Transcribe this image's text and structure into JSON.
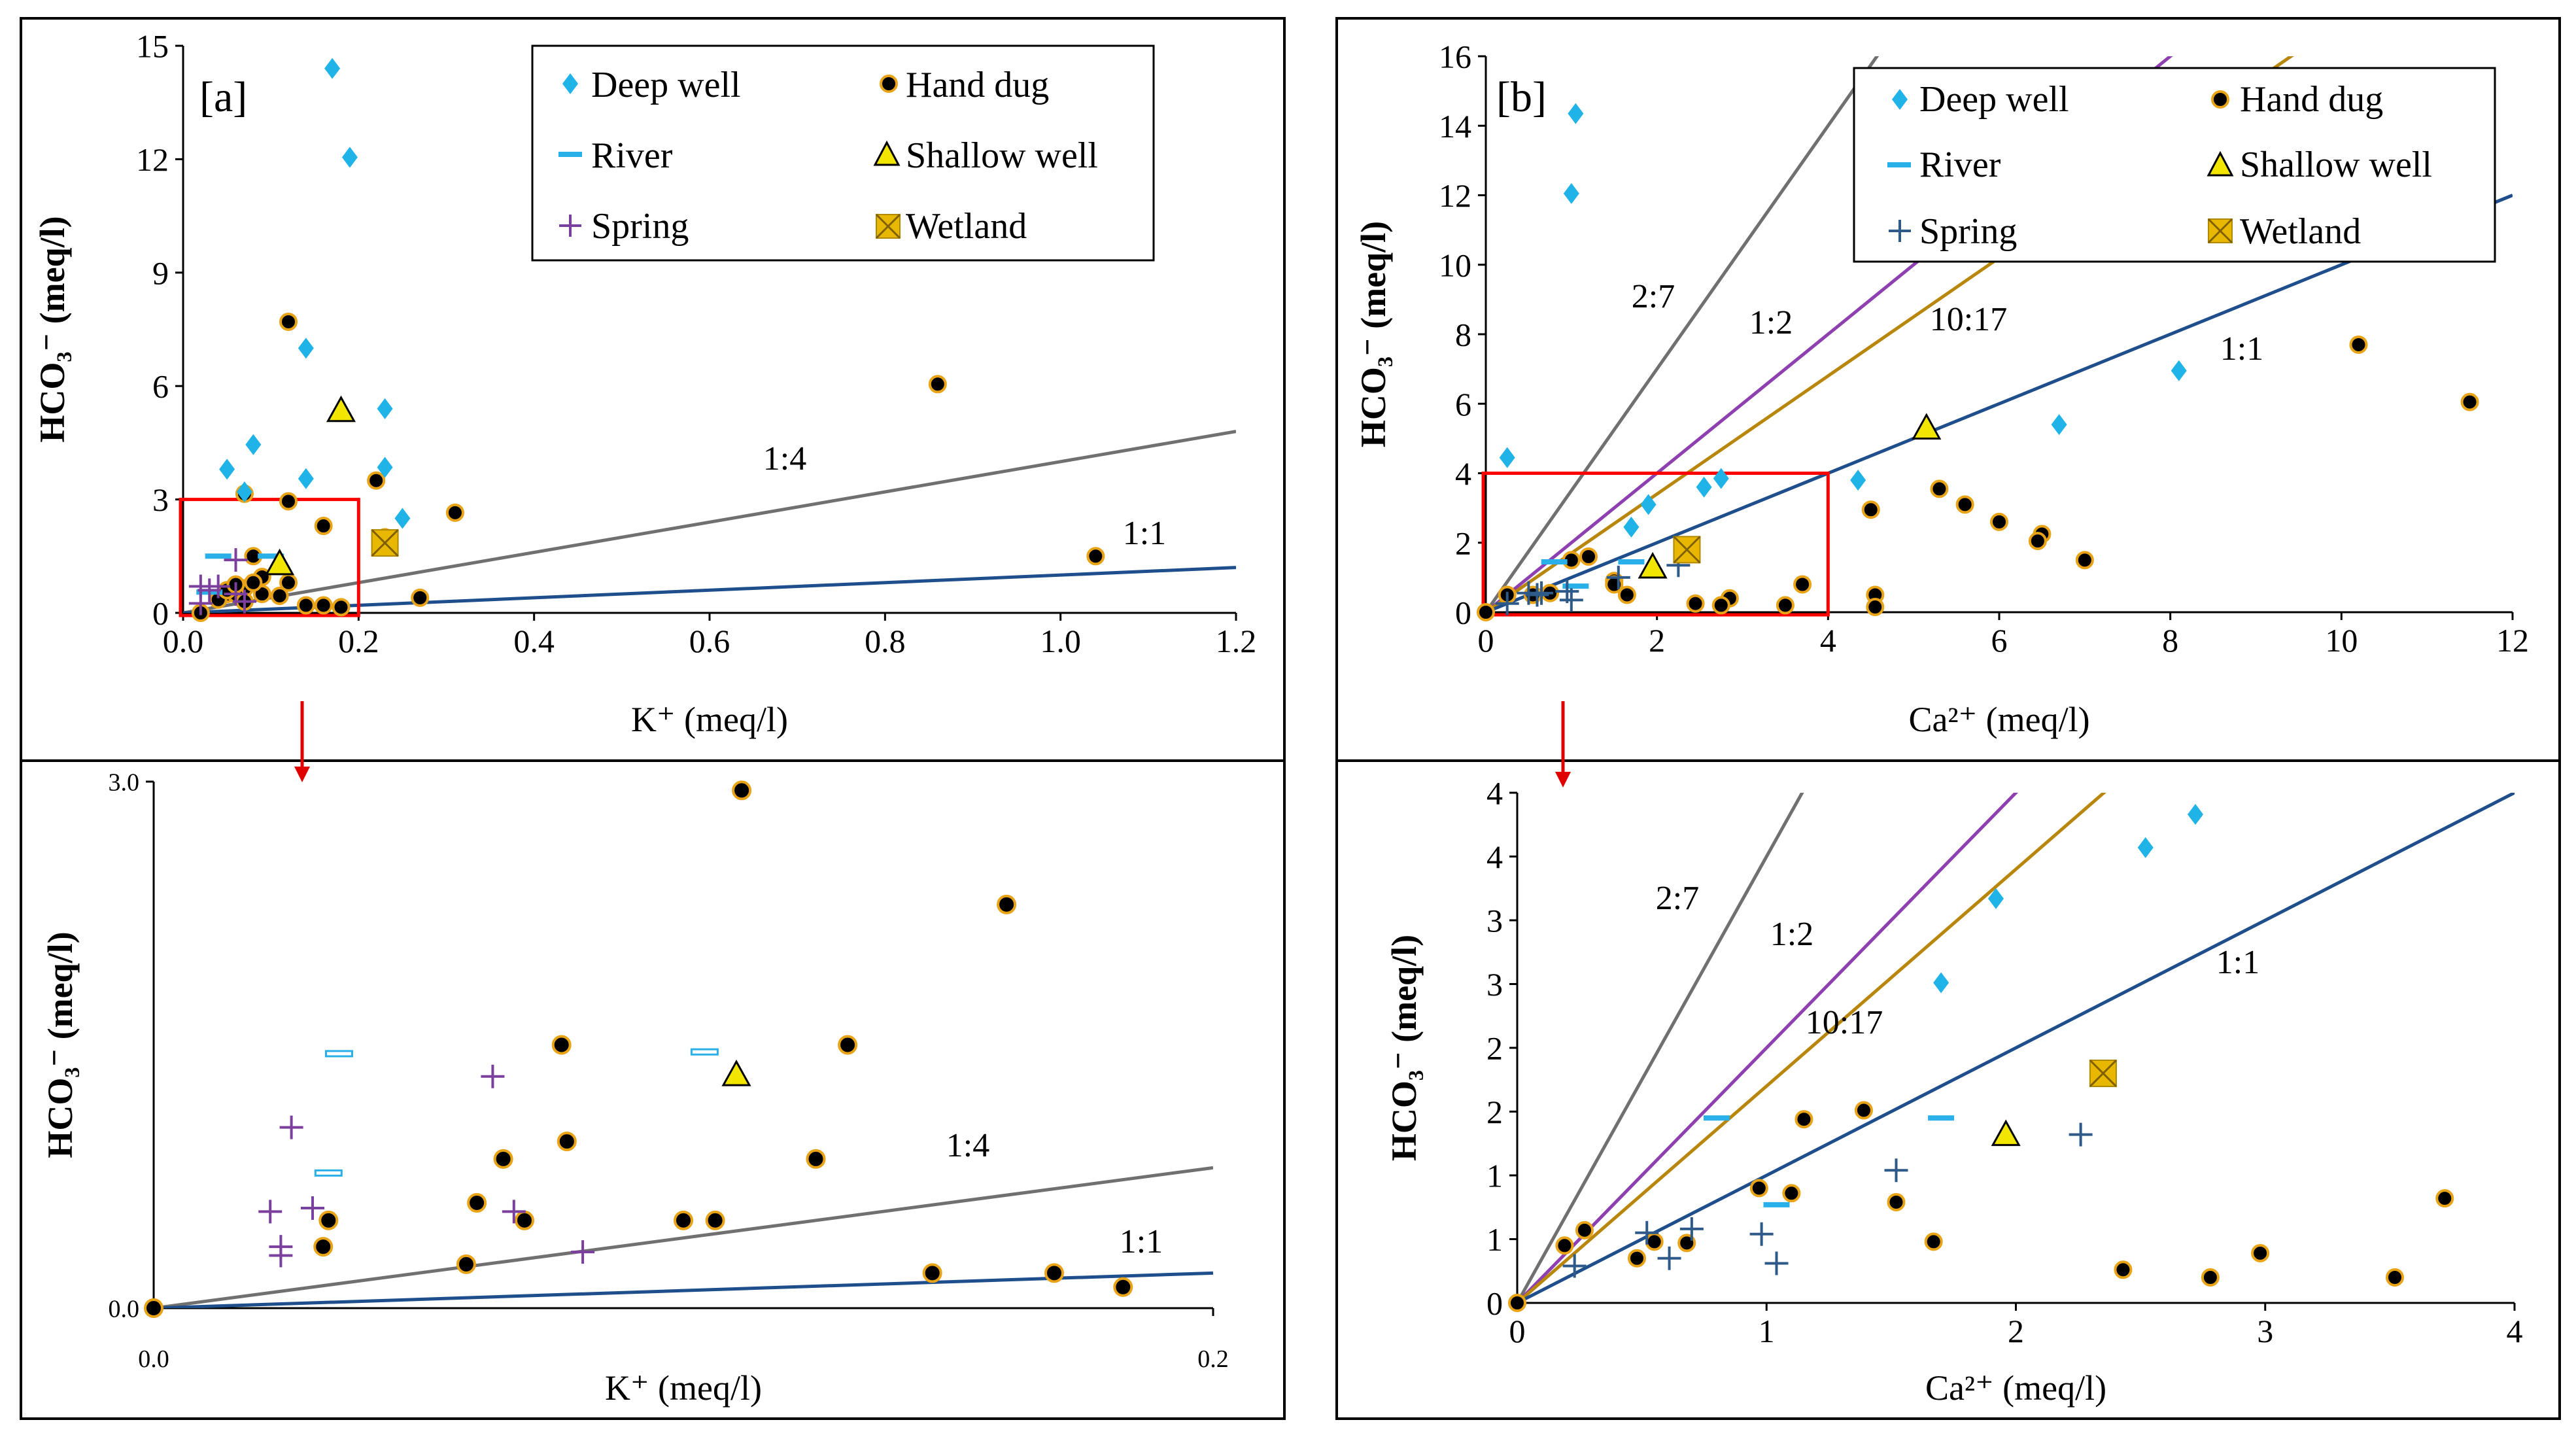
{
  "colors": {
    "deep": "#1fb3e8",
    "hand_fill": "#000000",
    "hand_edge": "#e8a317",
    "river": "#2ab0e8",
    "shallow": "#f2e600",
    "spring_a": "#7b3f9e",
    "spring_b": "#2e5a8a",
    "wetland": "#e8b800",
    "line_gray": "#707070",
    "line_blue": "#1f4e8c",
    "line_purple": "#8e3fb0",
    "line_gold": "#b8860b",
    "highlight": "#ff0000"
  },
  "legend_labels": {
    "deep": "Deep well",
    "hand": "Hand dug",
    "river": "River",
    "shallow": "Shallow well",
    "spring": "Spring",
    "wetland": "Wetland"
  },
  "chart_data": [
    {
      "id": "a",
      "type": "scatter",
      "panel_label": "[a]",
      "xlabel": "K⁺ (meq/l)",
      "ylabel": "HCO₃⁻ (meq/l)",
      "xlim": [
        0,
        1.2
      ],
      "ylim": [
        0,
        15
      ],
      "xticks": [
        "0.0",
        "0.2",
        "0.4",
        "0.6",
        "0.8",
        "1.0",
        "1.2"
      ],
      "yticks": [
        "0",
        "3",
        "6",
        "9",
        "12",
        "15"
      ],
      "lines": [
        {
          "label": "1:4",
          "slope": 4,
          "color": "line_gray"
        },
        {
          "label": "1:1",
          "slope": 1,
          "color": "line_blue"
        }
      ],
      "highlight_box": {
        "x": [
          0,
          0.2
        ],
        "y": [
          0,
          3
        ]
      },
      "series": {
        "deep": [
          [
            0.17,
            14.4
          ],
          [
            0.19,
            12.05
          ],
          [
            0.14,
            7.0
          ],
          [
            0.23,
            5.4
          ],
          [
            0.08,
            4.45
          ],
          [
            0.05,
            3.8
          ],
          [
            0.23,
            3.85
          ],
          [
            0.14,
            3.55
          ],
          [
            0.07,
            3.2
          ],
          [
            0.25,
            2.5
          ]
        ],
        "hand": [
          [
            0.12,
            7.7
          ],
          [
            0.86,
            6.05
          ],
          [
            0.07,
            3.15
          ],
          [
            0.22,
            3.5
          ],
          [
            0.12,
            2.95
          ],
          [
            0.31,
            2.65
          ],
          [
            0.16,
            2.3
          ],
          [
            0.23,
            2.0
          ],
          [
            0.08,
            1.5
          ],
          [
            1.04,
            1.5
          ],
          [
            0.12,
            0.8
          ],
          [
            0.07,
            0.65
          ],
          [
            0.05,
            0.5
          ],
          [
            0.06,
            0.5
          ],
          [
            0.02,
            0.0
          ],
          [
            0.27,
            0.4
          ],
          [
            0.14,
            0.2
          ],
          [
            0.16,
            0.2
          ],
          [
            0.18,
            0.15
          ],
          [
            0.09,
            0.5
          ],
          [
            0.11,
            0.45
          ],
          [
            0.04,
            0.35
          ],
          [
            0.07,
            0.3
          ],
          [
            0.05,
            0.6
          ],
          [
            0.09,
            0.95
          ],
          [
            0.06,
            0.75
          ],
          [
            0.08,
            0.8
          ]
        ],
        "river": [
          [
            0.04,
            1.5
          ],
          [
            0.1,
            1.5
          ],
          [
            0.03,
            0.55
          ]
        ],
        "shallow": [
          [
            0.18,
            5.35
          ],
          [
            0.11,
            1.3
          ]
        ],
        "spring": [
          [
            0.03,
            0.6
          ],
          [
            0.02,
            0.7
          ],
          [
            0.04,
            0.7
          ],
          [
            0.06,
            0.5
          ],
          [
            0.02,
            0.25
          ],
          [
            0.06,
            1.4
          ],
          [
            0.07,
            0.3
          ]
        ],
        "wetland": [
          [
            0.23,
            1.85
          ]
        ]
      }
    },
    {
      "id": "a-zoom",
      "type": "scatter",
      "panel_label": "",
      "xlabel": "K⁺ (meq/l)",
      "ylabel": "HCO₃⁻ (meq/l)",
      "xlim": [
        0,
        0.2
      ],
      "ylim": [
        0,
        3
      ],
      "xticks": [
        "0.0",
        "0.2"
      ],
      "yticks": [
        "0.0",
        "3.0"
      ],
      "lines": [
        {
          "label": "1:4",
          "slope": 4,
          "color": "line_gray"
        },
        {
          "label": "1:1",
          "slope": 1,
          "color": "line_blue"
        }
      ],
      "series": {
        "deep": [],
        "hand": [
          [
            0.111,
            2.95
          ],
          [
            0.161,
            2.3
          ],
          [
            0.077,
            1.5
          ],
          [
            0.131,
            1.5
          ],
          [
            0.078,
            0.95
          ],
          [
            0.066,
            0.85
          ],
          [
            0.125,
            0.85
          ],
          [
            0.061,
            0.6
          ],
          [
            0.07,
            0.5
          ],
          [
            0.033,
            0.5
          ],
          [
            0.1,
            0.5
          ],
          [
            0.106,
            0.5
          ],
          [
            0.059,
            0.25
          ],
          [
            0.032,
            0.35
          ],
          [
            0.147,
            0.2
          ],
          [
            0.17,
            0.2
          ],
          [
            0.183,
            0.12
          ],
          [
            0.0,
            0.0
          ]
        ],
        "river": [
          [
            0.035,
            1.45
          ],
          [
            0.104,
            1.46
          ],
          [
            0.033,
            0.77
          ]
        ],
        "shallow": [
          [
            0.11,
            1.33
          ]
        ],
        "spring": [
          [
            0.026,
            1.03
          ],
          [
            0.064,
            1.32
          ],
          [
            0.022,
            0.55
          ],
          [
            0.03,
            0.57
          ],
          [
            0.024,
            0.3
          ],
          [
            0.024,
            0.35
          ],
          [
            0.068,
            0.55
          ],
          [
            0.081,
            0.32
          ]
        ],
        "wetland": []
      }
    },
    {
      "id": "b",
      "type": "scatter",
      "panel_label": "[b]",
      "xlabel": "Ca²⁺ (meq/l)",
      "ylabel": "HCO₃⁻ (meq/l)",
      "xlim": [
        0,
        12
      ],
      "ylim": [
        0,
        16
      ],
      "xticks": [
        "0",
        "2",
        "4",
        "6",
        "8",
        "10",
        "12"
      ],
      "yticks": [
        "0",
        "2",
        "4",
        "6",
        "8",
        "10",
        "12",
        "14",
        "16"
      ],
      "lines": [
        {
          "label": "2:7",
          "slope": 3.5,
          "color": "line_gray"
        },
        {
          "label": "1:2",
          "slope": 2,
          "color": "line_purple"
        },
        {
          "label": "10:17",
          "slope": 1.7,
          "color": "line_gold"
        },
        {
          "label": "1:1",
          "slope": 1,
          "color": "line_blue"
        }
      ],
      "highlight_box": {
        "x": [
          0,
          4
        ],
        "y": [
          0,
          4
        ]
      },
      "series": {
        "deep": [
          [
            1.05,
            14.35
          ],
          [
            1.0,
            12.05
          ],
          [
            8.1,
            6.95
          ],
          [
            6.7,
            5.4
          ],
          [
            0.25,
            4.45
          ],
          [
            2.75,
            3.85
          ],
          [
            2.55,
            3.6
          ],
          [
            4.35,
            3.8
          ],
          [
            1.9,
            3.1
          ],
          [
            1.7,
            2.45
          ]
        ],
        "hand": [
          [
            10.2,
            7.7
          ],
          [
            11.5,
            6.05
          ],
          [
            5.3,
            3.55
          ],
          [
            5.6,
            3.1
          ],
          [
            4.5,
            2.95
          ],
          [
            6.0,
            2.6
          ],
          [
            6.5,
            2.25
          ],
          [
            6.45,
            2.05
          ],
          [
            7.0,
            1.5
          ],
          [
            3.7,
            0.8
          ],
          [
            4.55,
            0.5
          ],
          [
            4.55,
            0.15
          ],
          [
            3.5,
            0.2
          ],
          [
            2.85,
            0.4
          ],
          [
            2.75,
            0.2
          ],
          [
            2.45,
            0.25
          ],
          [
            1.5,
            0.9
          ],
          [
            1.2,
            1.6
          ],
          [
            1.0,
            1.5
          ],
          [
            0.55,
            0.5
          ],
          [
            0.25,
            0.5
          ],
          [
            0.0,
            0.0
          ],
          [
            0.75,
            0.55
          ],
          [
            1.5,
            0.8
          ],
          [
            1.65,
            0.5
          ]
        ],
        "river": [
          [
            0.8,
            1.45
          ],
          [
            1.7,
            1.45
          ],
          [
            1.05,
            0.75
          ]
        ],
        "shallow": [
          [
            5.15,
            5.3
          ],
          [
            1.95,
            1.3
          ]
        ],
        "spring": [
          [
            0.5,
            0.55
          ],
          [
            0.95,
            0.6
          ],
          [
            1.55,
            1.0
          ],
          [
            2.25,
            1.35
          ],
          [
            0.25,
            0.25
          ],
          [
            0.65,
            0.55
          ],
          [
            1.0,
            0.35
          ],
          [
            0.6,
            0.5
          ]
        ],
        "wetland": [
          [
            2.35,
            1.8
          ]
        ]
      }
    },
    {
      "id": "b-zoom",
      "type": "scatter",
      "panel_label": "",
      "xlabel": "Ca²⁺ (meq/l)",
      "ylabel": "HCO₃⁻ (meq/l)",
      "xlim": [
        0,
        4
      ],
      "ylim": [
        0,
        4
      ],
      "xticks": [
        "0",
        "1",
        "2",
        "3",
        "4"
      ],
      "yticks": [
        "0",
        "1",
        "1",
        "2",
        "2",
        "3",
        "3",
        "4",
        "4"
      ],
      "lines": [
        {
          "label": "2:7",
          "slope": 3.5,
          "color": "line_gray"
        },
        {
          "label": "1:2",
          "slope": 2,
          "color": "line_purple"
        },
        {
          "label": "10:17",
          "slope": 1.7,
          "color": "line_gold"
        },
        {
          "label": "1:1",
          "slope": 1,
          "color": "line_blue"
        }
      ],
      "series": {
        "deep": [
          [
            2.72,
            3.83
          ],
          [
            2.52,
            3.57
          ],
          [
            1.92,
            3.17
          ],
          [
            1.7,
            2.51
          ]
        ],
        "hand": [
          [
            0.19,
            0.45
          ],
          [
            0.27,
            0.57
          ],
          [
            0.48,
            0.35
          ],
          [
            0.55,
            0.48
          ],
          [
            0.68,
            0.47
          ],
          [
            0.97,
            0.9
          ],
          [
            1.1,
            0.86
          ],
          [
            1.15,
            1.44
          ],
          [
            1.39,
            1.51
          ],
          [
            1.52,
            0.79
          ],
          [
            1.67,
            0.48
          ],
          [
            2.43,
            0.26
          ],
          [
            2.78,
            0.2
          ],
          [
            2.98,
            0.39
          ],
          [
            3.52,
            0.2
          ],
          [
            3.72,
            0.82
          ],
          [
            0.0,
            0.0
          ]
        ],
        "river": [
          [
            0.8,
            1.45
          ],
          [
            1.7,
            1.45
          ],
          [
            1.04,
            0.77
          ]
        ],
        "shallow": [
          [
            1.96,
            1.32
          ]
        ],
        "spring": [
          [
            0.23,
            0.29
          ],
          [
            0.52,
            0.55
          ],
          [
            0.61,
            0.35
          ],
          [
            0.7,
            0.58
          ],
          [
            0.98,
            0.54
          ],
          [
            1.04,
            0.31
          ],
          [
            1.52,
            1.04
          ],
          [
            2.26,
            1.32
          ]
        ],
        "wetland": [
          [
            2.35,
            1.8
          ]
        ]
      }
    }
  ]
}
